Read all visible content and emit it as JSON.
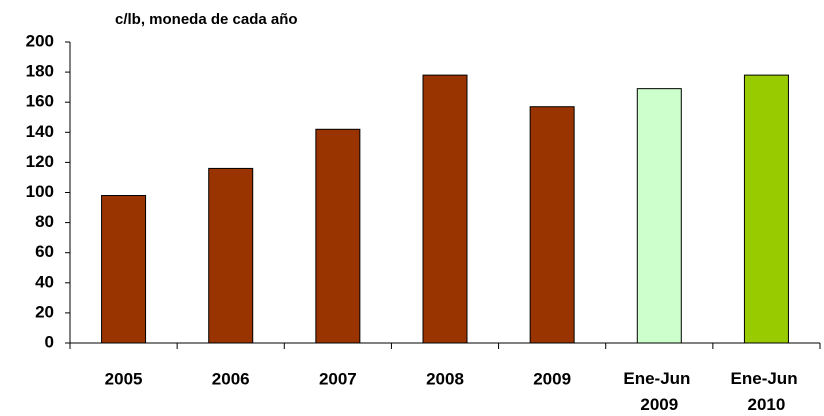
{
  "chart_data": {
    "type": "bar",
    "title": "c/lb, moneda de cada año",
    "categories": [
      "2005",
      "2006",
      "2007",
      "2008",
      "2009",
      "Ene-Jun 2009",
      "Ene-Jun 2010"
    ],
    "values": [
      98,
      116,
      142,
      178,
      157,
      169,
      178
    ],
    "colors": [
      "#993300",
      "#993300",
      "#993300",
      "#993300",
      "#993300",
      "#ccffcc",
      "#99cc00"
    ],
    "ylim": [
      0,
      200
    ],
    "yticks": [
      0,
      20,
      40,
      60,
      80,
      100,
      120,
      140,
      160,
      180,
      200
    ],
    "grid": false
  }
}
